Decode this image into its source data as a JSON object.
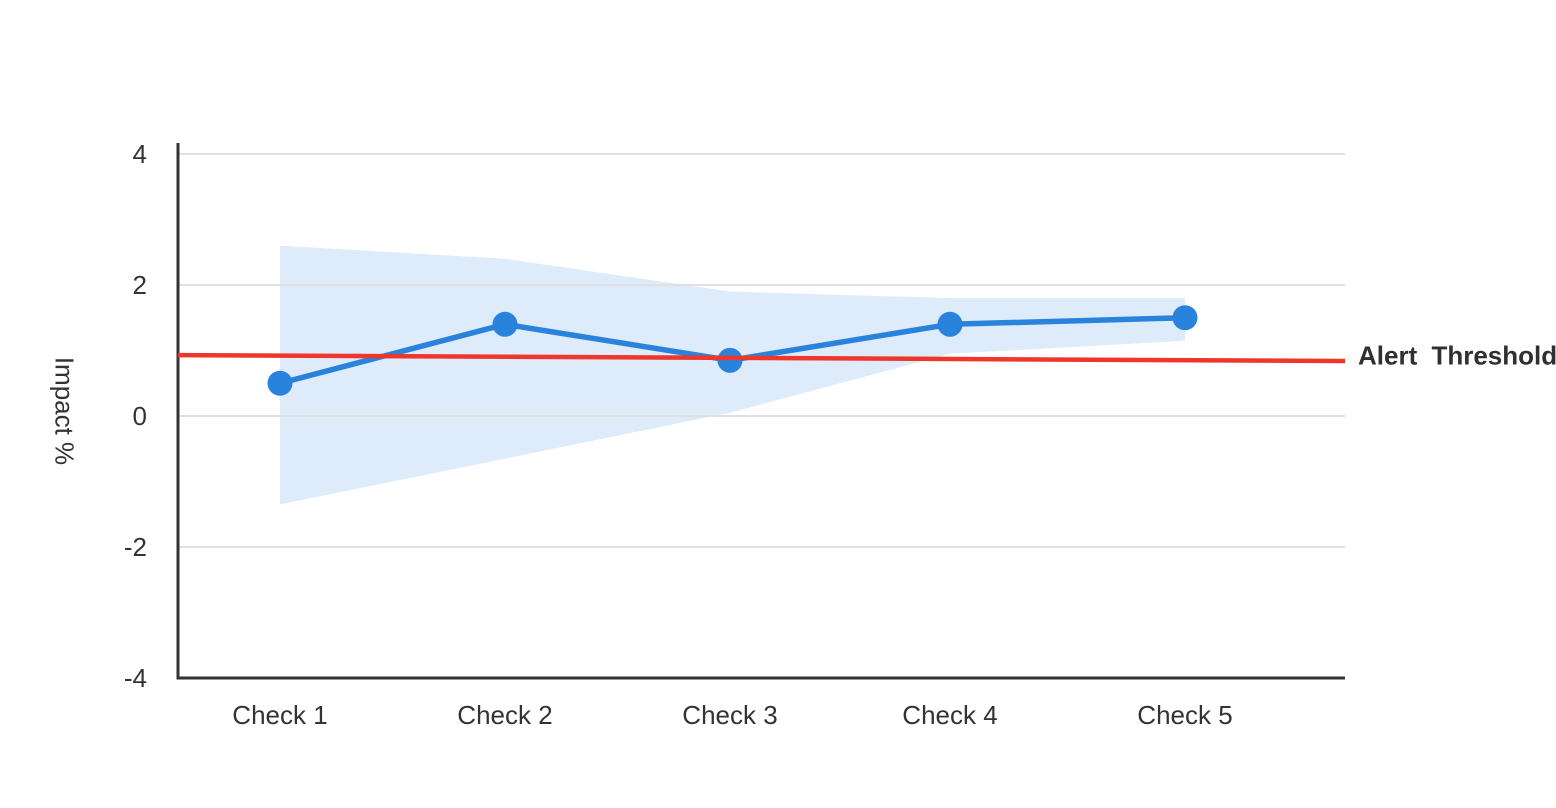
{
  "page": {
    "background_color": "#ffffff"
  },
  "chart_data": {
    "type": "line",
    "title": "",
    "categories": [
      "Check 1",
      "Check 2",
      "Check 3",
      "Check 4",
      "Check 5"
    ],
    "series": [
      {
        "name": "Impact",
        "values": [
          0.5,
          1.4,
          0.85,
          1.4,
          1.5
        ],
        "color": "#2982dc",
        "marker": "circle"
      }
    ],
    "confidence_band": {
      "name": "confidence-band",
      "upper": [
        2.6,
        2.4,
        1.9,
        1.8,
        1.8
      ],
      "lower": [
        -1.35,
        -0.65,
        0.05,
        0.95,
        1.15
      ],
      "color": "#ddebfa"
    },
    "threshold": {
      "label": "Alert Threshold",
      "value": 0.9,
      "start_value": 0.93,
      "end_value": 0.84,
      "color": "#ee362b",
      "label_color": "#2e3033"
    },
    "xlabel": "",
    "ylabel": "Impact %",
    "ylim": [
      -4,
      4
    ],
    "yticks": [
      "4",
      "2",
      "0",
      "-2",
      "-4"
    ],
    "ytick_values": [
      4,
      2,
      0,
      -2,
      -4
    ],
    "grid": true,
    "grid_color": "#e0e0e0",
    "axis_color": "#333333",
    "tick_label_color": "#333333",
    "legend_position": "right-of-threshold-line"
  }
}
